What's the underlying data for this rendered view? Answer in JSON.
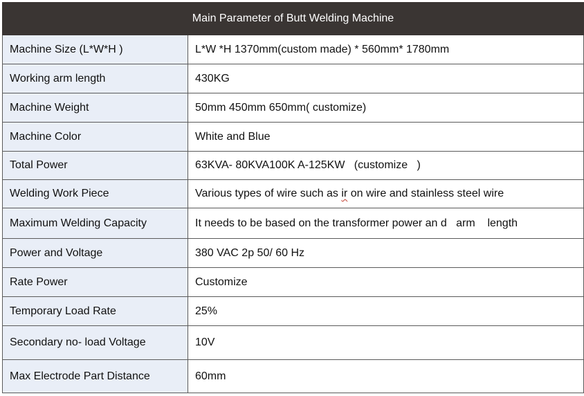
{
  "title": "Main Parameter of Butt Welding Machine",
  "rows": [
    {
      "label": "Machine Size (L*W*H )",
      "value": "L*W *H 1370mm(custom made) * 560mm* 1780mm"
    },
    {
      "label": "Working arm length",
      "value": "430KG"
    },
    {
      "label": "Machine Weight",
      "value": "50mm 450mm 650mm( customize)"
    },
    {
      "label": "Machine Color",
      "value": "White and Blue"
    },
    {
      "label": "Total Power",
      "value": "63KVA- 80KVA100K A-125KW   (customize   )"
    },
    {
      "label": "Welding Work Piece",
      "value_parts": [
        "Various types of wire such as ",
        "ir",
        " on wire and stainless steel wire"
      ]
    },
    {
      "label": "Maximum Welding Capacity",
      "value": "It needs to be based on the transformer power an d   arm    length"
    },
    {
      "label": "Power and Voltage",
      "value": "380 VAC 2p 50/ 60 Hz"
    },
    {
      "label": "Rate Power",
      "value": "Customize"
    },
    {
      "label": "Temporary Load Rate",
      "value": "25%"
    },
    {
      "label": "Secondary no- load Voltage",
      "value": "10V"
    },
    {
      "label": "Max Electrode Part Distance",
      "value": "60mm"
    }
  ]
}
